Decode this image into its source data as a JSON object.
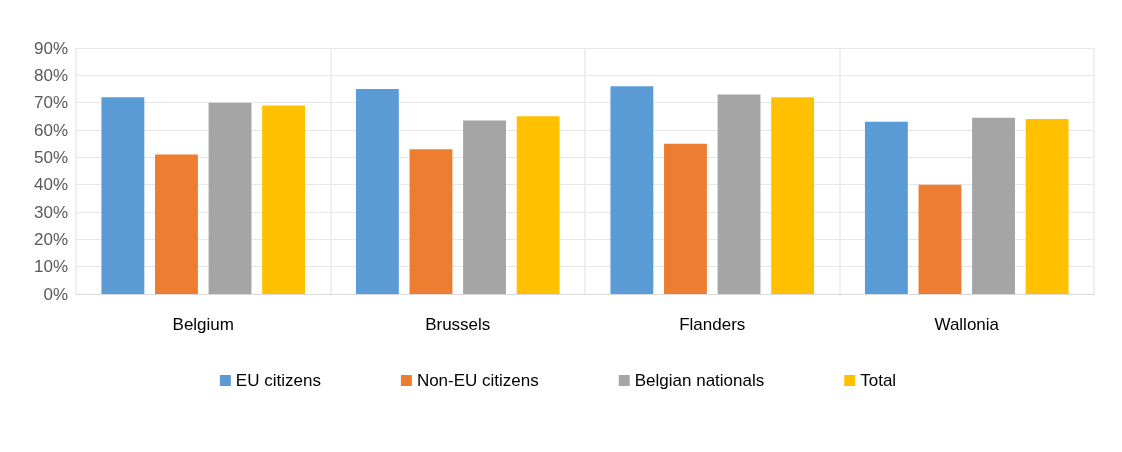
{
  "chart_data": {
    "type": "bar",
    "categories": [
      "Belgium",
      "Brussels",
      "Flanders",
      "Wallonia"
    ],
    "series": [
      {
        "name": "EU citizens",
        "color": "#5b9bd5",
        "values": [
          72,
          75,
          76,
          63
        ]
      },
      {
        "name": "Non-EU citizens",
        "color": "#ed7d31",
        "values": [
          51,
          53,
          55,
          40
        ]
      },
      {
        "name": "Belgian nationals",
        "color": "#a5a5a5",
        "values": [
          70,
          63.5,
          73,
          64.5
        ]
      },
      {
        "name": "Total",
        "color": "#ffc000",
        "values": [
          69,
          65,
          72,
          64
        ]
      }
    ],
    "ylim": [
      0,
      90
    ],
    "yticks": [
      {
        "value": 0,
        "label": "0%"
      },
      {
        "value": 10,
        "label": "10%"
      },
      {
        "value": 20,
        "label": "20%"
      },
      {
        "value": 30,
        "label": "30%"
      },
      {
        "value": 40,
        "label": "40%"
      },
      {
        "value": 50,
        "label": "50%"
      },
      {
        "value": 60,
        "label": "60%"
      },
      {
        "value": 70,
        "label": "70%"
      },
      {
        "value": 80,
        "label": "80%"
      },
      {
        "value": 90,
        "label": "90%"
      }
    ],
    "grid": true,
    "legend": "bottom"
  }
}
